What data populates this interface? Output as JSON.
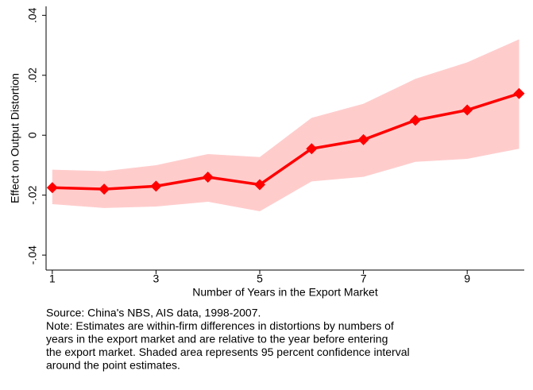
{
  "chart_data": {
    "type": "line_band",
    "y_label": "Effect on Output Distortion",
    "x_label": "Number of Years in the Export Market",
    "x": [
      1,
      2,
      3,
      4,
      5,
      6,
      7,
      8,
      9,
      10
    ],
    "series": [
      {
        "color": "#ff0000",
        "values": [
          -0.0175,
          -0.018,
          -0.017,
          -0.014,
          -0.0165,
          -0.0045,
          -0.0015,
          0.005,
          0.0084,
          0.0139
        ]
      }
    ],
    "ci_upper": [
      -0.0115,
      -0.012,
      -0.01,
      -0.0063,
      -0.0073,
      0.0058,
      0.0105,
      0.0188,
      0.0243,
      0.032
    ],
    "ci_lower": [
      -0.023,
      -0.0243,
      -0.0238,
      -0.0222,
      -0.0254,
      -0.0154,
      -0.0139,
      -0.0089,
      -0.0079,
      -0.0045
    ],
    "band_color": "#ffcccc",
    "xlim": [
      0.88,
      10.1
    ],
    "xticks": [
      1,
      3,
      5,
      7,
      9
    ],
    "ylim": [
      -0.045,
      0.043
    ],
    "yticks": [
      {
        "value": -0.04,
        "label": "-.04"
      },
      {
        "value": -0.02,
        "label": "-.02"
      },
      0,
      {
        "value": 0.02,
        "label": ".02"
      },
      {
        "value": 0.04,
        "label": ".04"
      }
    ],
    "notes": [
      "Source: China's NBS, AIS data, 1998-2007.",
      "Note: Estimates are within-firm differences in distortions by numbers of",
      "years in the export market and are relative to the year before entering",
      "the export market. Shaded area represents 95 percent confidence interval",
      "around the point estimates."
    ]
  }
}
